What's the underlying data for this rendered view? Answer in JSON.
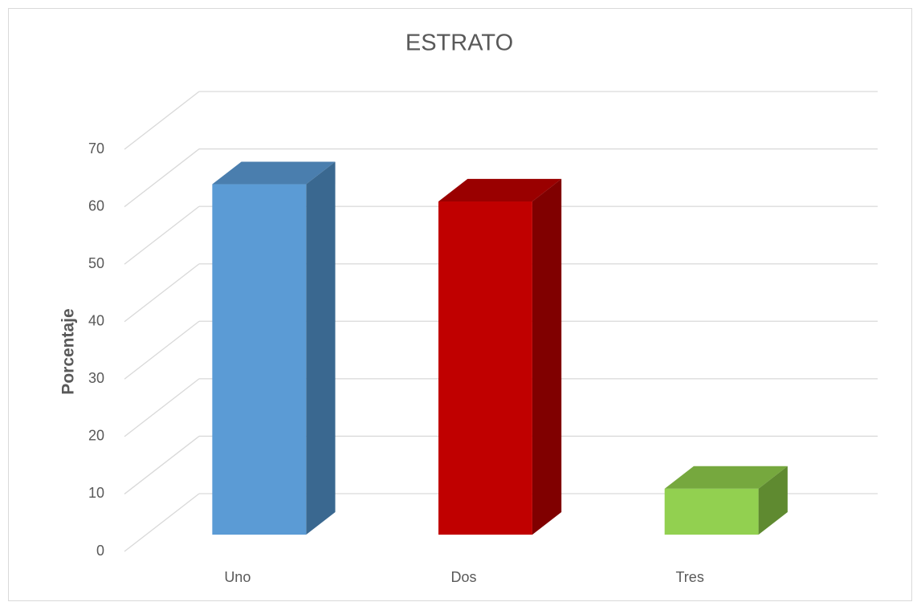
{
  "chart_data": {
    "type": "bar3d",
    "title": "ESTRATO",
    "y_label": "Porcentaje",
    "categories": [
      "Uno",
      "Dos",
      "Tres"
    ],
    "values": [
      61,
      58,
      8
    ],
    "colors": [
      "#5b9bd5",
      "#c00000",
      "#92d050"
    ],
    "side_colors": [
      "#3a6890",
      "#800000",
      "#5f8a30"
    ],
    "top_colors": [
      "#4a7eae",
      "#9a0000",
      "#76a83e"
    ],
    "ylim": [
      0,
      70
    ],
    "yticks": [
      0,
      10,
      20,
      30,
      40,
      50,
      60,
      70
    ],
    "grid": true
  }
}
